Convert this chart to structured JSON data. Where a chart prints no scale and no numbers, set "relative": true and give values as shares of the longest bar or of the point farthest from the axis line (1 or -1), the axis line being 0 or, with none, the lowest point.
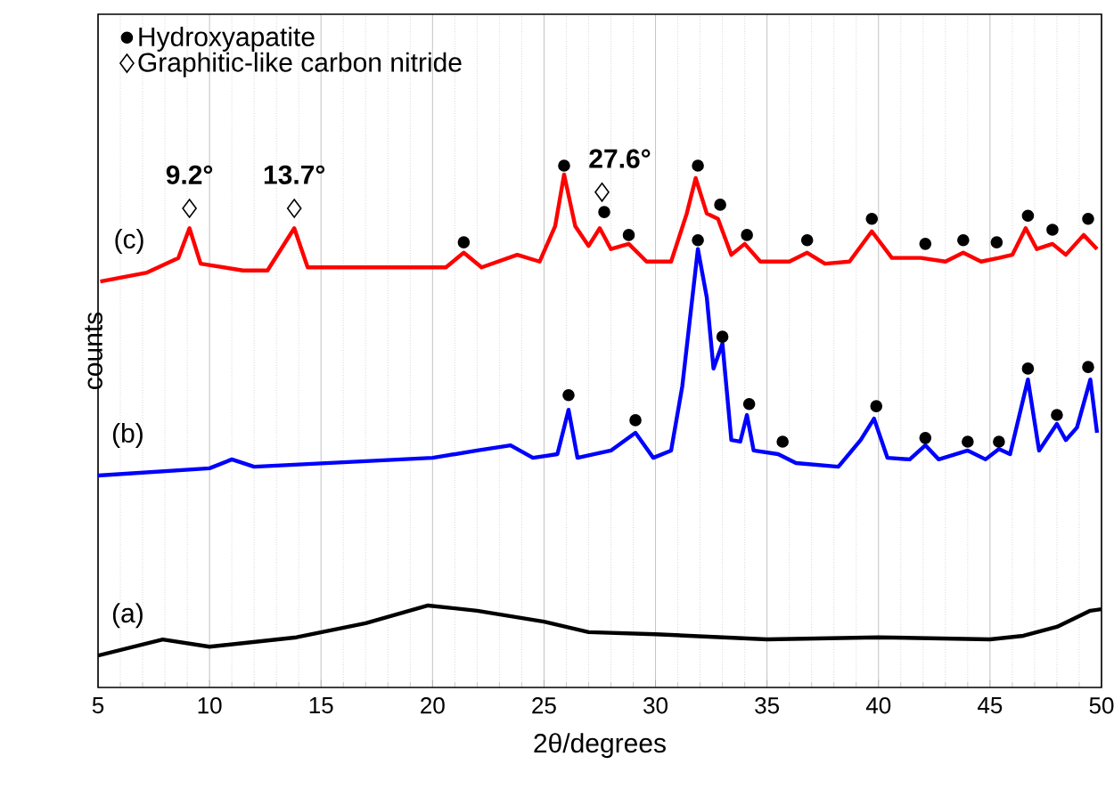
{
  "chart_data": {
    "type": "line",
    "relative": true,
    "xlabel": "2θ/degrees",
    "ylabel": "counts",
    "xlim": [
      5,
      50
    ],
    "xticks": [
      5,
      10,
      15,
      20,
      25,
      30,
      35,
      40,
      45,
      50
    ],
    "grid": "x",
    "legend": "top left",
    "series": [
      {
        "name": "(a)",
        "color": "#000000",
        "x": [
          5,
          7.9,
          10,
          13.9,
          17,
          19.8,
          22,
          25,
          27,
          30,
          35,
          40,
          45,
          46.5,
          48,
          49.5,
          50
        ],
        "values": [
          0.061,
          0.092,
          0.078,
          0.096,
          0.123,
          0.157,
          0.147,
          0.126,
          0.106,
          0.102,
          0.092,
          0.096,
          0.092,
          0.099,
          0.116,
          0.147,
          0.15
        ]
      },
      {
        "name": "(b)",
        "color": "#0000ff",
        "x": [
          5,
          10,
          11,
          12,
          20,
          22,
          23.5,
          24.5,
          25.6,
          26.1,
          26.5,
          28,
          29.1,
          29.9,
          30.7,
          31.2,
          31.9,
          32.3,
          32.6,
          33.0,
          33.4,
          33.8,
          34.1,
          34.4,
          35.5,
          36.3,
          38.2,
          39.2,
          39.8,
          40.4,
          41.4,
          42.1,
          42.7,
          44.0,
          44.8,
          45.4,
          45.9,
          46.7,
          47.2,
          48.0,
          48.4,
          48.9,
          49.5,
          49.8
        ],
        "values": [
          0.406,
          0.42,
          0.437,
          0.423,
          0.44,
          0.454,
          0.464,
          0.44,
          0.447,
          0.532,
          0.44,
          0.454,
          0.488,
          0.44,
          0.454,
          0.577,
          0.84,
          0.747,
          0.611,
          0.659,
          0.474,
          0.471,
          0.522,
          0.454,
          0.447,
          0.43,
          0.423,
          0.474,
          0.515,
          0.44,
          0.437,
          0.464,
          0.437,
          0.454,
          0.437,
          0.457,
          0.447,
          0.59,
          0.454,
          0.505,
          0.474,
          0.498,
          0.59,
          0.488
        ]
      },
      {
        "name": "(c)",
        "color": "#ff0000",
        "x": [
          5.1,
          7.2,
          8.6,
          9.1,
          9.6,
          11.5,
          12.6,
          13.8,
          14.4,
          16.6,
          20.6,
          21.4,
          22.2,
          23.8,
          24.8,
          25.5,
          25.9,
          26.4,
          27.0,
          27.5,
          28.0,
          28.8,
          29.6,
          30.7,
          31.4,
          31.8,
          32.3,
          32.8,
          33.4,
          34.0,
          34.7,
          36.0,
          36.8,
          37.6,
          38.7,
          39.7,
          40.6,
          41.9,
          43.0,
          43.8,
          44.6,
          45.4,
          46.0,
          46.6,
          47.1,
          47.8,
          48.4,
          49.2,
          49.8
        ],
        "values": [
          0.778,
          0.795,
          0.823,
          0.88,
          0.812,
          0.799,
          0.799,
          0.88,
          0.805,
          0.805,
          0.805,
          0.833,
          0.805,
          0.829,
          0.816,
          0.884,
          0.983,
          0.884,
          0.846,
          0.88,
          0.84,
          0.85,
          0.816,
          0.816,
          0.908,
          0.976,
          0.908,
          0.898,
          0.829,
          0.85,
          0.816,
          0.816,
          0.833,
          0.812,
          0.816,
          0.874,
          0.823,
          0.823,
          0.816,
          0.833,
          0.816,
          0.823,
          0.829,
          0.88,
          0.84,
          0.85,
          0.829,
          0.867,
          0.84
        ]
      },
      {
        "type": "scatter",
        "name": "Hydroxyapatite",
        "marker": "circle",
        "color": "#000000",
        "x": [
          21.4,
          25.9,
          27.7,
          28.8,
          31.9,
          32.9,
          34.1,
          36.8,
          39.7,
          42.1,
          43.8,
          45.3,
          46.7,
          47.8,
          49.4,
          26.1,
          29.1,
          31.9,
          33.0,
          34.2,
          35.7,
          39.9,
          42.1,
          44.0,
          45.4,
          46.7,
          48.0,
          49.4
        ],
        "values": [
          0.853,
          1.0,
          0.911,
          0.867,
          1.0,
          0.925,
          0.867,
          0.857,
          0.898,
          0.85,
          0.857,
          0.853,
          0.904,
          0.877,
          0.898,
          0.56,
          0.512,
          0.857,
          0.672,
          0.543,
          0.471,
          0.539,
          0.478,
          0.471,
          0.471,
          0.611,
          0.522,
          0.614
        ]
      },
      {
        "type": "scatter",
        "name": "Graphitic-like carbon nitride",
        "marker": "diamond",
        "color": "#000000",
        "x": [
          9.1,
          13.8,
          27.6
        ],
        "values": [
          0.918,
          0.918,
          0.949
        ]
      }
    ],
    "annotations": [
      "9.2°",
      "13.7°",
      "27.6°"
    ]
  }
}
